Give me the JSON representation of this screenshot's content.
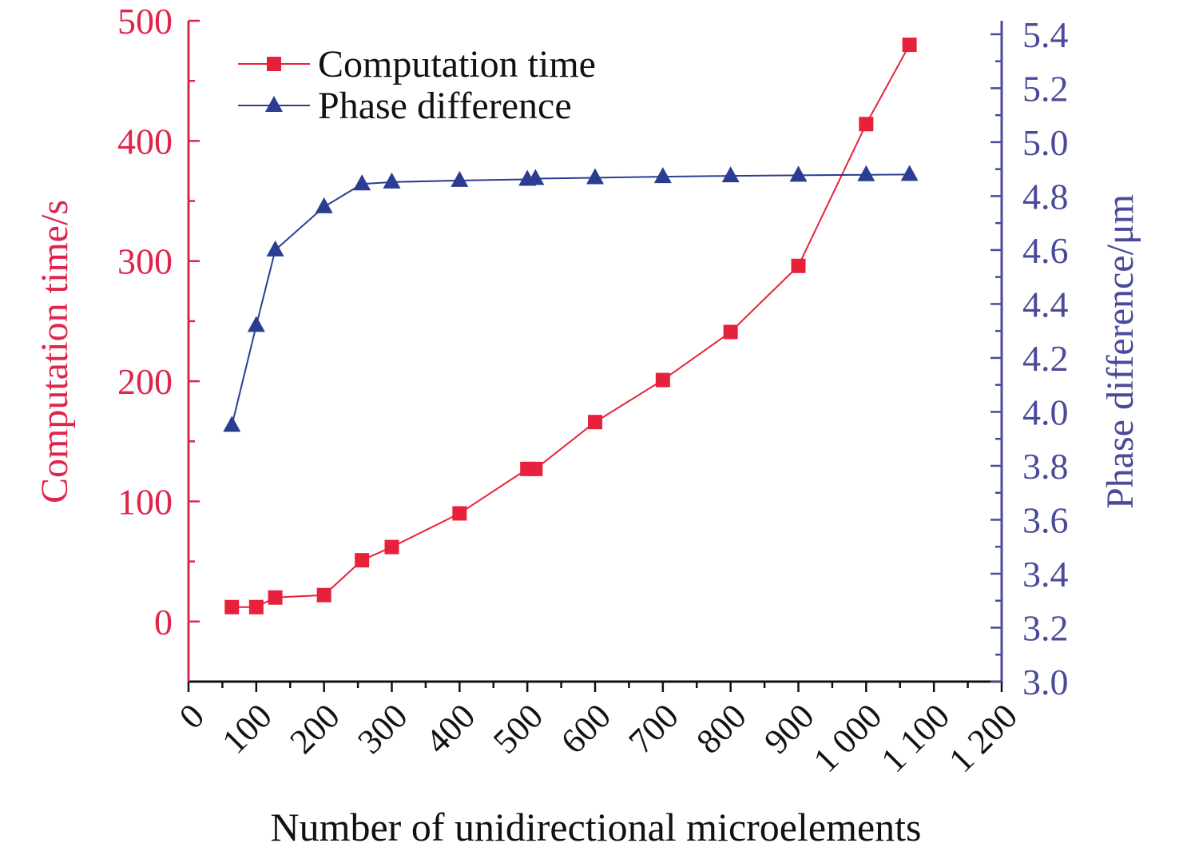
{
  "chart_data": {
    "type": "line",
    "xlabel": "Number of unidirectional microelements",
    "ylabel_left": "Computation time/s",
    "ylabel_right": "Phase difference/μm",
    "xlim": [
      0,
      1200
    ],
    "ylim_left": [
      -50,
      500
    ],
    "ylim_right": [
      3.0,
      5.45
    ],
    "x_ticks": [
      {
        "value": 0,
        "label": "0"
      },
      {
        "value": 100,
        "label": "100"
      },
      {
        "value": 200,
        "label": "200"
      },
      {
        "value": 300,
        "label": "300"
      },
      {
        "value": 400,
        "label": "400"
      },
      {
        "value": 500,
        "label": "500"
      },
      {
        "value": 600,
        "label": "600"
      },
      {
        "value": 700,
        "label": "700"
      },
      {
        "value": 800,
        "label": "800"
      },
      {
        "value": 900,
        "label": "900"
      },
      {
        "value": 1000,
        "label": "1 000"
      },
      {
        "value": 1100,
        "label": "1 100"
      },
      {
        "value": 1200,
        "label": "1 200"
      }
    ],
    "y_left_ticks": [
      {
        "value": 0,
        "label": "0"
      },
      {
        "value": 100,
        "label": "100"
      },
      {
        "value": 200,
        "label": "200"
      },
      {
        "value": 300,
        "label": "300"
      },
      {
        "value": 400,
        "label": "400"
      },
      {
        "value": 500,
        "label": "500"
      }
    ],
    "y_right_ticks": [
      {
        "value": 3.0,
        "label": "3.0"
      },
      {
        "value": 3.2,
        "label": "3.2"
      },
      {
        "value": 3.4,
        "label": "3.4"
      },
      {
        "value": 3.6,
        "label": "3.6"
      },
      {
        "value": 3.8,
        "label": "3.8"
      },
      {
        "value": 4.0,
        "label": "4.0"
      },
      {
        "value": 4.2,
        "label": "4.2"
      },
      {
        "value": 4.4,
        "label": "4.4"
      },
      {
        "value": 4.6,
        "label": "4.6"
      },
      {
        "value": 4.8,
        "label": "4.8"
      },
      {
        "value": 5.0,
        "label": "5.0"
      },
      {
        "value": 5.2,
        "label": "5.2"
      },
      {
        "value": 5.4,
        "label": "5.4"
      }
    ],
    "legend_position": "top-left",
    "grid": false,
    "series": [
      {
        "name": "Computation time",
        "axis": "left",
        "color": "#e8213a",
        "marker": "square",
        "x": [
          64,
          100,
          128,
          200,
          256,
          300,
          400,
          500,
          512,
          600,
          700,
          800,
          900,
          1000,
          1064
        ],
        "y": [
          12,
          12,
          20,
          22,
          51,
          62,
          90,
          127,
          127,
          166,
          201,
          241,
          296,
          414,
          480
        ]
      },
      {
        "name": "Phase difference",
        "axis": "right",
        "color": "#2a3d91",
        "marker": "triangle",
        "x": [
          64,
          100,
          128,
          200,
          256,
          300,
          400,
          500,
          512,
          600,
          700,
          800,
          900,
          1000,
          1064
        ],
        "y": [
          3.95,
          4.32,
          4.6,
          4.76,
          4.845,
          4.852,
          4.858,
          4.862,
          4.865,
          4.868,
          4.872,
          4.875,
          4.877,
          4.879,
          4.88
        ]
      }
    ]
  },
  "colors": {
    "left_axis": "#e0244a",
    "right_axis": "#4a4a9a",
    "x_axis": "#111111"
  }
}
